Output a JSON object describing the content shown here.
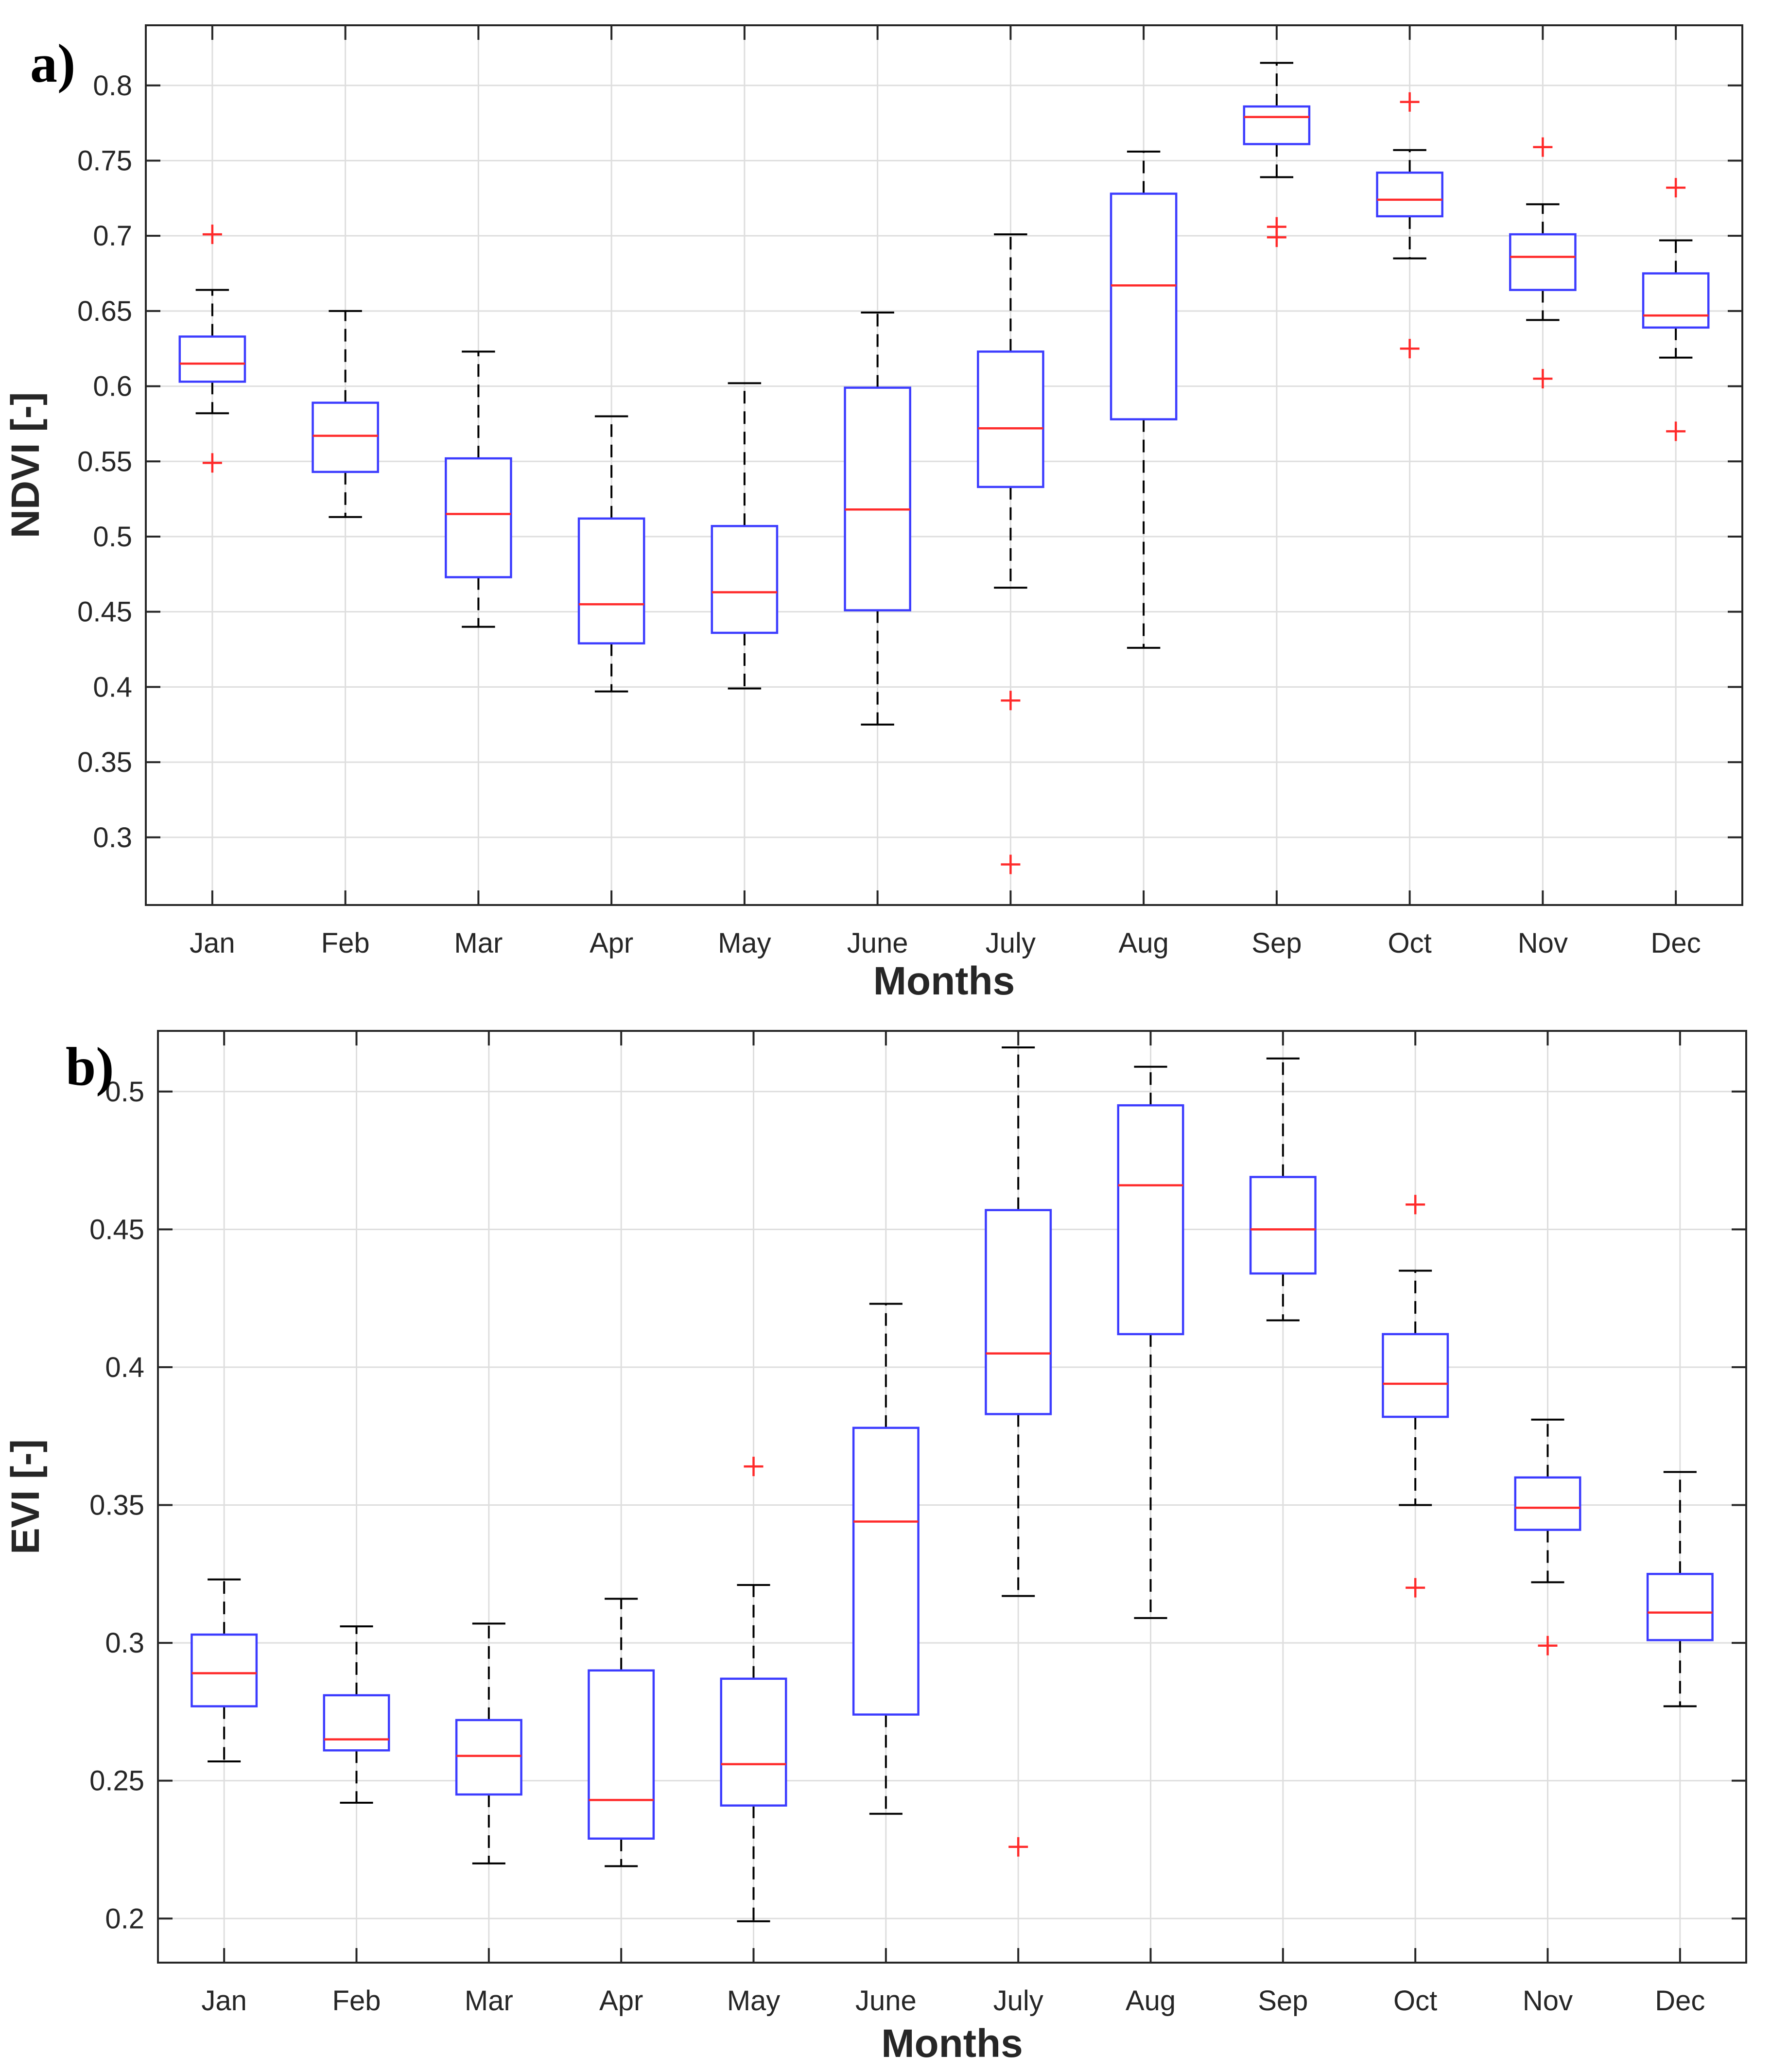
{
  "colors": {
    "box": "#3c3cff",
    "median": "#ff2a2a",
    "whisker": "#000000",
    "outlier": "#ff2a2a",
    "grid": "#dedede",
    "axis": "#262626"
  },
  "chart_data": [
    {
      "type": "box",
      "panel_label": "a)",
      "xlabel": "Months",
      "ylabel": "NDVI [-]",
      "ylim": [
        0.255,
        0.84
      ],
      "yticks": [
        "0.3",
        "0.35",
        "0.4",
        "0.45",
        "0.5",
        "0.55",
        "0.6",
        "0.65",
        "0.7",
        "0.75",
        "0.8"
      ],
      "grid": true,
      "categories": [
        "Jan",
        "Feb",
        "Mar",
        "Apr",
        "May",
        "June",
        "July",
        "Aug",
        "Sep",
        "Oct",
        "Nov",
        "Dec"
      ],
      "boxes": [
        {
          "min": 0.582,
          "q1": 0.603,
          "median": 0.615,
          "q3": 0.633,
          "max": 0.664,
          "outliers": [
            0.701,
            0.549
          ]
        },
        {
          "min": 0.513,
          "q1": 0.543,
          "median": 0.567,
          "q3": 0.589,
          "max": 0.65,
          "outliers": []
        },
        {
          "min": 0.44,
          "q1": 0.473,
          "median": 0.515,
          "q3": 0.552,
          "max": 0.623,
          "outliers": []
        },
        {
          "min": 0.397,
          "q1": 0.429,
          "median": 0.455,
          "q3": 0.512,
          "max": 0.58,
          "outliers": []
        },
        {
          "min": 0.399,
          "q1": 0.436,
          "median": 0.463,
          "q3": 0.507,
          "max": 0.602,
          "outliers": []
        },
        {
          "min": 0.375,
          "q1": 0.451,
          "median": 0.518,
          "q3": 0.599,
          "max": 0.649,
          "outliers": []
        },
        {
          "min": 0.466,
          "q1": 0.533,
          "median": 0.572,
          "q3": 0.623,
          "max": 0.701,
          "outliers": [
            0.391,
            0.282
          ]
        },
        {
          "min": 0.426,
          "q1": 0.578,
          "median": 0.667,
          "q3": 0.728,
          "max": 0.756,
          "outliers": []
        },
        {
          "min": 0.739,
          "q1": 0.761,
          "median": 0.779,
          "q3": 0.786,
          "max": 0.815,
          "outliers": [
            0.706,
            0.699
          ]
        },
        {
          "min": 0.685,
          "q1": 0.713,
          "median": 0.724,
          "q3": 0.742,
          "max": 0.757,
          "outliers": [
            0.789,
            0.625
          ]
        },
        {
          "min": 0.644,
          "q1": 0.664,
          "median": 0.686,
          "q3": 0.701,
          "max": 0.721,
          "outliers": [
            0.759,
            0.605
          ]
        },
        {
          "min": 0.619,
          "q1": 0.639,
          "median": 0.647,
          "q3": 0.675,
          "max": 0.697,
          "outliers": [
            0.732,
            0.57
          ]
        }
      ]
    },
    {
      "type": "box",
      "panel_label": "b)",
      "xlabel": "Months",
      "ylabel": "EVI [-]",
      "ylim": [
        0.184,
        0.522
      ],
      "yticks": [
        "0.2",
        "0.25",
        "0.3",
        "0.35",
        "0.4",
        "0.45",
        "0.5"
      ],
      "grid": true,
      "categories": [
        "Jan",
        "Feb",
        "Mar",
        "Apr",
        "May",
        "June",
        "July",
        "Aug",
        "Sep",
        "Oct",
        "Nov",
        "Dec"
      ],
      "boxes": [
        {
          "min": 0.257,
          "q1": 0.277,
          "median": 0.289,
          "q3": 0.303,
          "max": 0.323,
          "outliers": []
        },
        {
          "min": 0.242,
          "q1": 0.261,
          "median": 0.265,
          "q3": 0.281,
          "max": 0.306,
          "outliers": []
        },
        {
          "min": 0.22,
          "q1": 0.245,
          "median": 0.259,
          "q3": 0.272,
          "max": 0.307,
          "outliers": []
        },
        {
          "min": 0.219,
          "q1": 0.229,
          "median": 0.243,
          "q3": 0.29,
          "max": 0.316,
          "outliers": []
        },
        {
          "min": 0.199,
          "q1": 0.241,
          "median": 0.256,
          "q3": 0.287,
          "max": 0.321,
          "outliers": [
            0.364
          ]
        },
        {
          "min": 0.238,
          "q1": 0.274,
          "median": 0.344,
          "q3": 0.378,
          "max": 0.423,
          "outliers": []
        },
        {
          "min": 0.317,
          "q1": 0.383,
          "median": 0.405,
          "q3": 0.457,
          "max": 0.516,
          "outliers": [
            0.226
          ]
        },
        {
          "min": 0.309,
          "q1": 0.412,
          "median": 0.466,
          "q3": 0.495,
          "max": 0.509,
          "outliers": []
        },
        {
          "min": 0.417,
          "q1": 0.434,
          "median": 0.45,
          "q3": 0.469,
          "max": 0.512,
          "outliers": []
        },
        {
          "min": 0.35,
          "q1": 0.382,
          "median": 0.394,
          "q3": 0.412,
          "max": 0.435,
          "outliers": [
            0.459,
            0.32
          ]
        },
        {
          "min": 0.322,
          "q1": 0.341,
          "median": 0.349,
          "q3": 0.36,
          "max": 0.381,
          "outliers": [
            0.299
          ]
        },
        {
          "min": 0.277,
          "q1": 0.301,
          "median": 0.311,
          "q3": 0.325,
          "max": 0.362,
          "outliers": []
        }
      ]
    }
  ]
}
